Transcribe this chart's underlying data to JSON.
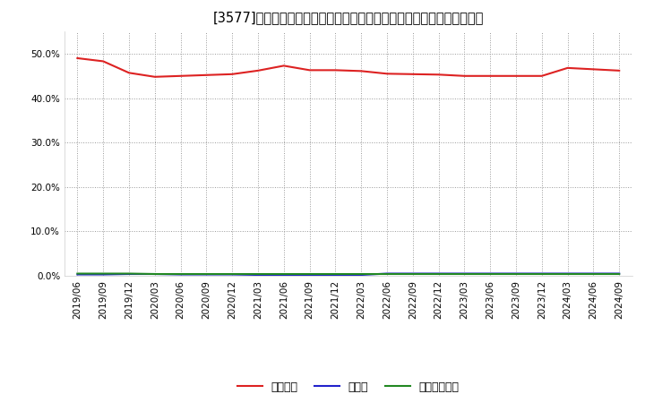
{
  "title": "[3577]　自己資本、のれん、繰延税金資産の総資産に対する比率の推移",
  "x_labels": [
    "2019/06",
    "2019/09",
    "2019/12",
    "2020/03",
    "2020/06",
    "2020/09",
    "2020/12",
    "2021/03",
    "2021/06",
    "2021/09",
    "2021/12",
    "2022/03",
    "2022/06",
    "2022/09",
    "2022/12",
    "2023/03",
    "2023/06",
    "2023/09",
    "2023/12",
    "2024/03",
    "2024/06",
    "2024/09"
  ],
  "equity_ratio": [
    0.49,
    0.483,
    0.457,
    0.448,
    0.45,
    0.452,
    0.454,
    0.462,
    0.473,
    0.463,
    0.463,
    0.461,
    0.455,
    0.454,
    0.453,
    0.45,
    0.45,
    0.45,
    0.45,
    0.468,
    0.465,
    0.462
  ],
  "goodwill_ratio": [
    0.003,
    0.003,
    0.004,
    0.004,
    0.003,
    0.003,
    0.003,
    0.002,
    0.002,
    0.002,
    0.002,
    0.002,
    0.005,
    0.005,
    0.005,
    0.005,
    0.005,
    0.005,
    0.005,
    0.005,
    0.005,
    0.005
  ],
  "deferred_tax_ratio": [
    0.005,
    0.005,
    0.005,
    0.004,
    0.004,
    0.004,
    0.004,
    0.004,
    0.004,
    0.004,
    0.004,
    0.004,
    0.004,
    0.004,
    0.004,
    0.004,
    0.004,
    0.004,
    0.004,
    0.004,
    0.004,
    0.004
  ],
  "equity_color": "#dd2222",
  "goodwill_color": "#2222cc",
  "deferred_tax_color": "#228822",
  "legend_labels": [
    "自己資本",
    "のれん",
    "繰延税金資産"
  ],
  "ylim": [
    0.0,
    0.55
  ],
  "yticks": [
    0.0,
    0.1,
    0.2,
    0.3,
    0.4,
    0.5
  ],
  "ytick_labels": [
    "0.0%",
    "10.0%",
    "20.0%",
    "30.0%",
    "40.0%",
    "50.0%"
  ],
  "background_color": "#ffffff",
  "plot_bg_color": "#ffffff",
  "grid_color": "#999999",
  "title_fontsize": 10.5,
  "legend_fontsize": 9,
  "tick_fontsize": 7.5
}
